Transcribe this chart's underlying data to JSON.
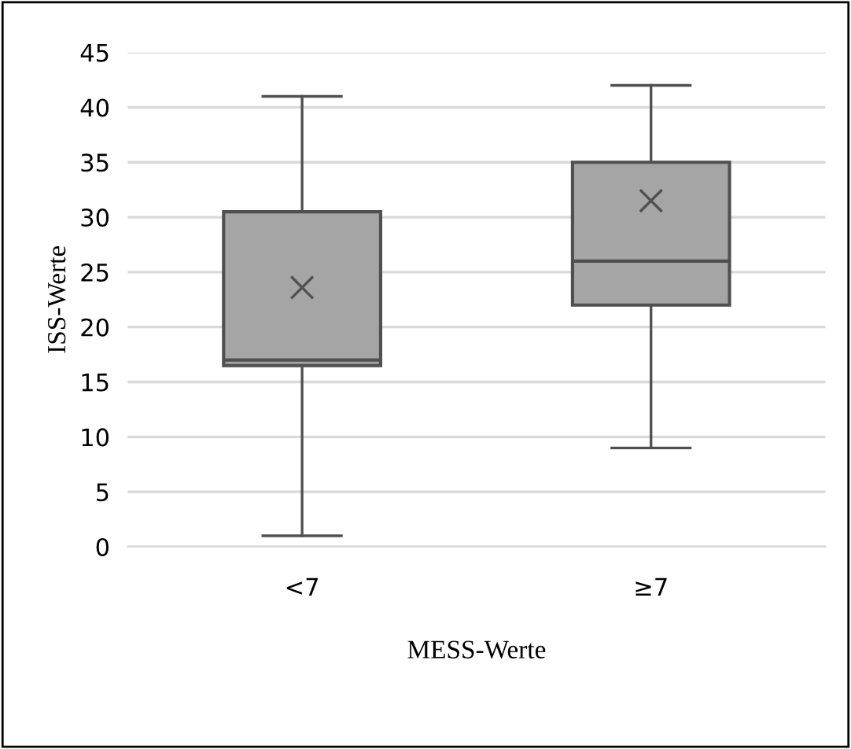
{
  "chart_data": {
    "type": "box",
    "xlabel": "MESS-Werte",
    "ylabel": "ISS-Werte",
    "categories": [
      "<7",
      "≥7"
    ],
    "boxes": [
      {
        "low": 1,
        "q1": 16.5,
        "median": 17,
        "q3": 30.5,
        "high": 41,
        "mean": 23.6
      },
      {
        "low": 9,
        "q1": 22,
        "median": 26,
        "q3": 35,
        "high": 42,
        "mean": 31.5
      }
    ],
    "color": "#a5a5a5",
    "ylim": [
      0,
      45
    ],
    "yticks": [
      0,
      5,
      10,
      15,
      20,
      25,
      30,
      35,
      40,
      45
    ],
    "grid": "y"
  }
}
